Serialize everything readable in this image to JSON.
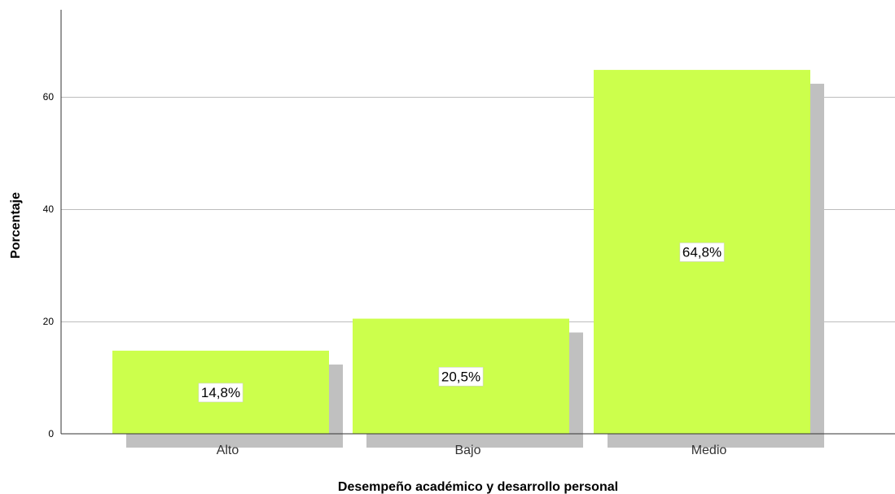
{
  "chart_data": {
    "type": "bar",
    "title": "",
    "xlabel": "Desempeño académico y desarrollo personal",
    "ylabel": "Porcentaje",
    "categories": [
      "Alto",
      "Bajo",
      "Medio"
    ],
    "values": [
      14.8,
      20.5,
      64.8
    ],
    "data_labels": [
      "14,8%",
      "20,5%",
      "64,8%"
    ],
    "y_ticks": [
      0,
      20,
      40,
      60
    ],
    "y_tick_labels": [
      "0",
      "20",
      "40",
      "60"
    ],
    "ylim": [
      0,
      75
    ],
    "grid": true,
    "bar_color": "#ccff4c",
    "shadow_color": "#c0c0c0"
  }
}
